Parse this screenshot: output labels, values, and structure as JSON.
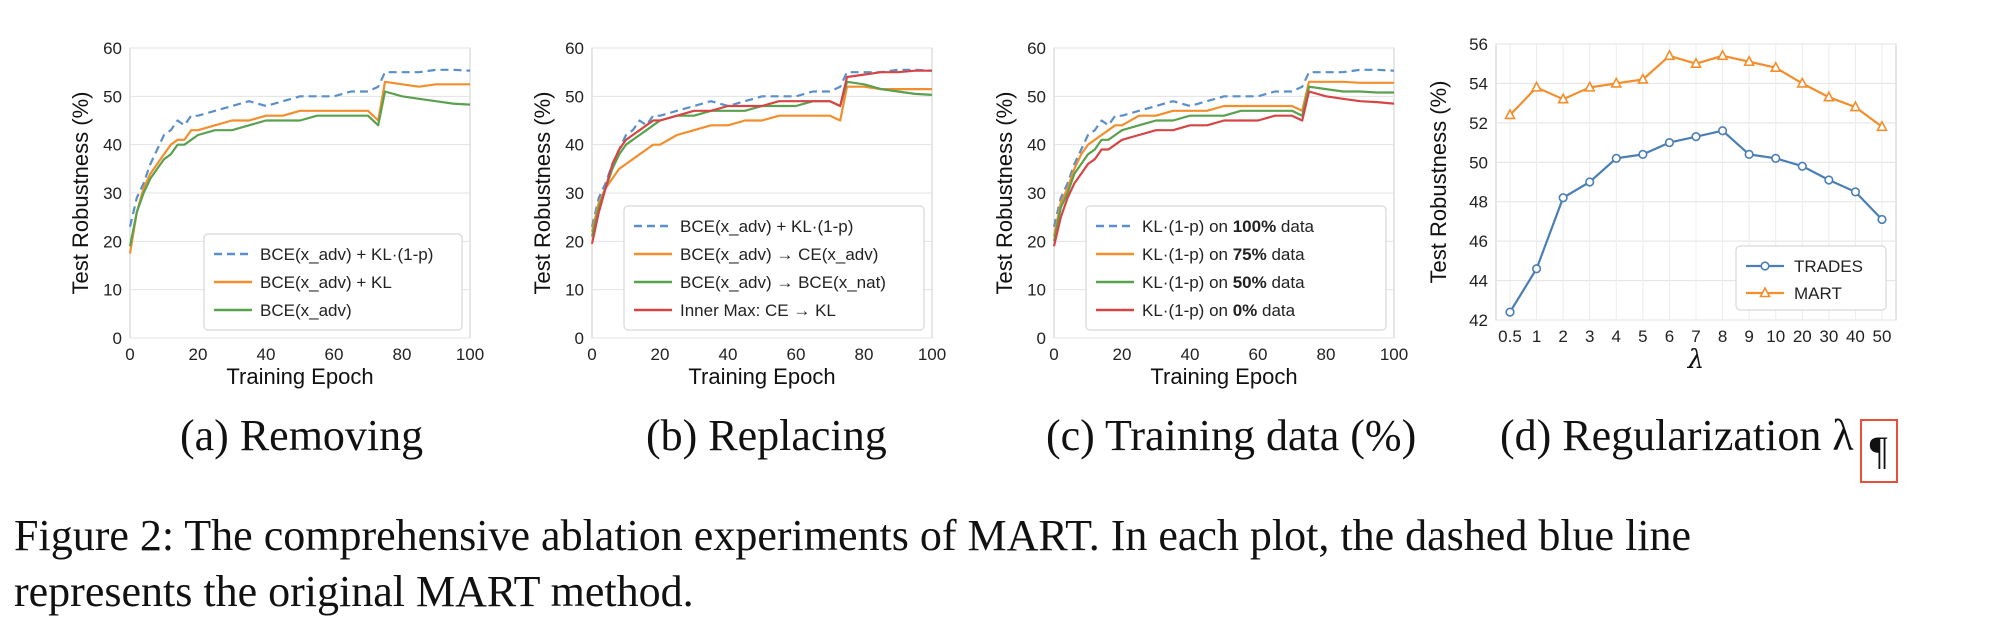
{
  "figure": {
    "caption_line1": "Figure 2: The comprehensive ablation experiments of MART. In each plot, the dashed blue line",
    "caption_line2": "represents the original MART method.",
    "pilcrow": "¶"
  },
  "chart_data": [
    {
      "type": "line",
      "subcaption": "(a) Removing",
      "xlabel": "Training Epoch",
      "ylabel": "Test Robustness (%)",
      "xlim": [
        0,
        100
      ],
      "ylim": [
        0,
        60
      ],
      "xticks": [
        "0",
        "20",
        "40",
        "60",
        "80",
        "100"
      ],
      "yticks": [
        "0",
        "10",
        "20",
        "30",
        "40",
        "50",
        "60"
      ],
      "grid": "horizontal",
      "legend_position": "lower-right",
      "series": [
        {
          "name": "BCE(x_adv) + KL·(1-p)",
          "color": "#5b8fc9",
          "dashed": true,
          "x": [
            0,
            2,
            4,
            6,
            8,
            10,
            12,
            14,
            16,
            18,
            20,
            25,
            30,
            35,
            40,
            45,
            50,
            55,
            60,
            65,
            70,
            73,
            75,
            80,
            85,
            90,
            95,
            100
          ],
          "y": [
            23,
            29,
            32,
            36,
            39,
            42,
            43,
            45,
            44,
            46,
            46,
            47,
            48,
            49,
            48,
            49,
            50,
            50,
            50,
            51,
            51,
            52,
            55,
            55,
            55,
            55.5,
            55.5,
            55.3
          ]
        },
        {
          "name": "BCE(x_adv) + KL",
          "color": "#f28e2b",
          "dashed": false,
          "x": [
            0,
            2,
            4,
            6,
            8,
            10,
            12,
            14,
            16,
            18,
            20,
            25,
            30,
            35,
            40,
            45,
            50,
            55,
            60,
            65,
            70,
            73,
            75,
            80,
            85,
            90,
            95,
            100
          ],
          "y": [
            17.5,
            26,
            31,
            34,
            36,
            38,
            40,
            41,
            41,
            43,
            43,
            44,
            45,
            45,
            46,
            46,
            47,
            47,
            47,
            47,
            47,
            45,
            53,
            52.5,
            52,
            52.5,
            52.5,
            52.5
          ]
        },
        {
          "name": "BCE(x_adv)",
          "color": "#59a14f",
          "dashed": false,
          "x": [
            0,
            2,
            4,
            6,
            8,
            10,
            12,
            14,
            16,
            18,
            20,
            25,
            30,
            35,
            40,
            45,
            50,
            55,
            60,
            65,
            70,
            73,
            75,
            80,
            85,
            90,
            95,
            100
          ],
          "y": [
            19,
            26,
            30,
            33,
            35,
            37,
            38,
            40,
            40,
            41,
            42,
            43,
            43,
            44,
            45,
            45,
            45,
            46,
            46,
            46,
            46,
            44,
            51,
            50,
            49.5,
            49,
            48.5,
            48.3
          ]
        }
      ]
    },
    {
      "type": "line",
      "subcaption": "(b) Replacing",
      "xlabel": "Training Epoch",
      "ylabel": "Test Robustness (%)",
      "xlim": [
        0,
        100
      ],
      "ylim": [
        0,
        60
      ],
      "xticks": [
        "0",
        "20",
        "40",
        "60",
        "80",
        "100"
      ],
      "yticks": [
        "0",
        "10",
        "20",
        "30",
        "40",
        "50",
        "60"
      ],
      "grid": "horizontal",
      "legend_position": "lower-right",
      "series": [
        {
          "name": "BCE(x_adv) + KL·(1-p)",
          "color": "#5b8fc9",
          "dashed": true,
          "x": [
            0,
            2,
            4,
            6,
            8,
            10,
            12,
            14,
            16,
            18,
            20,
            25,
            30,
            35,
            40,
            45,
            50,
            55,
            60,
            65,
            70,
            73,
            75,
            80,
            85,
            90,
            95,
            100
          ],
          "y": [
            23,
            29,
            32,
            36,
            39,
            42,
            43,
            45,
            44,
            46,
            46,
            47,
            48,
            49,
            48,
            49,
            50,
            50,
            50,
            51,
            51,
            52,
            55,
            55,
            55,
            55.5,
            55.5,
            55.3
          ]
        },
        {
          "name": "BCE(x_adv) → CE(x_adv)",
          "color": "#f28e2b",
          "dashed": false,
          "x": [
            0,
            2,
            4,
            6,
            8,
            10,
            12,
            14,
            16,
            18,
            20,
            25,
            30,
            35,
            40,
            45,
            50,
            55,
            60,
            65,
            70,
            73,
            75,
            80,
            85,
            90,
            95,
            100
          ],
          "y": [
            22,
            28,
            31,
            33,
            35,
            36,
            37,
            38,
            39,
            40,
            40,
            42,
            43,
            44,
            44,
            45,
            45,
            46,
            46,
            46,
            46,
            45,
            52,
            52,
            51.5,
            51.5,
            51.5,
            51.5
          ]
        },
        {
          "name": "BCE(x_adv) → BCE(x_nat)",
          "color": "#59a14f",
          "dashed": false,
          "x": [
            0,
            2,
            4,
            6,
            8,
            10,
            12,
            14,
            16,
            18,
            20,
            25,
            30,
            35,
            40,
            45,
            50,
            55,
            60,
            65,
            70,
            73,
            75,
            80,
            85,
            90,
            95,
            100
          ],
          "y": [
            21,
            27,
            31,
            35,
            38,
            40,
            41,
            42,
            43,
            44,
            45,
            46,
            46,
            47,
            47,
            47,
            48,
            48,
            48,
            49,
            49,
            48,
            53,
            52.5,
            51.5,
            51,
            50.5,
            50.3
          ]
        },
        {
          "name": "Inner Max: CE → KL",
          "color": "#d64545",
          "dashed": false,
          "x": [
            0,
            2,
            4,
            6,
            8,
            10,
            12,
            14,
            16,
            18,
            20,
            25,
            30,
            35,
            40,
            45,
            50,
            55,
            60,
            65,
            70,
            73,
            75,
            80,
            85,
            90,
            95,
            100
          ],
          "y": [
            19.5,
            26,
            31,
            36,
            39,
            41,
            42,
            43,
            44,
            45,
            45,
            46,
            47,
            47,
            48,
            48,
            48,
            49,
            49,
            49,
            49,
            48,
            54,
            54.5,
            55,
            55,
            55.3,
            55.3
          ]
        }
      ]
    },
    {
      "type": "line",
      "subcaption": "(c) Training data (%)",
      "xlabel": "Training Epoch",
      "ylabel": "Test Robustness (%)",
      "xlim": [
        0,
        100
      ],
      "ylim": [
        0,
        60
      ],
      "xticks": [
        "0",
        "20",
        "40",
        "60",
        "80",
        "100"
      ],
      "yticks": [
        "0",
        "10",
        "20",
        "30",
        "40",
        "50",
        "60"
      ],
      "grid": "horizontal",
      "legend_position": "lower-right",
      "series": [
        {
          "name": "KL·(1-p) on 100% data",
          "bold": "100%",
          "color": "#5b8fc9",
          "dashed": true,
          "x": [
            0,
            2,
            4,
            6,
            8,
            10,
            12,
            14,
            16,
            18,
            20,
            25,
            30,
            35,
            40,
            45,
            50,
            55,
            60,
            65,
            70,
            73,
            75,
            80,
            85,
            90,
            95,
            100
          ],
          "y": [
            23,
            29,
            32,
            36,
            39,
            42,
            43,
            45,
            44,
            46,
            46,
            47,
            48,
            49,
            48,
            49,
            50,
            50,
            50,
            51,
            51,
            52,
            55,
            55,
            55,
            55.5,
            55.5,
            55.3
          ]
        },
        {
          "name": "KL·(1-p) on 75% data",
          "bold": "75%",
          "color": "#f28e2b",
          "dashed": false,
          "x": [
            0,
            2,
            4,
            6,
            8,
            10,
            12,
            14,
            16,
            18,
            20,
            25,
            30,
            35,
            40,
            45,
            50,
            55,
            60,
            65,
            70,
            73,
            75,
            80,
            85,
            90,
            95,
            100
          ],
          "y": [
            21,
            28,
            31,
            35,
            38,
            40,
            41,
            42,
            43,
            44,
            44,
            46,
            46,
            47,
            47,
            47,
            48,
            48,
            48,
            48,
            48,
            47,
            53,
            53,
            53,
            52.8,
            52.8,
            52.8
          ]
        },
        {
          "name": "KL·(1-p) on 50% data",
          "bold": "50%",
          "color": "#59a14f",
          "dashed": false,
          "x": [
            0,
            2,
            4,
            6,
            8,
            10,
            12,
            14,
            16,
            18,
            20,
            25,
            30,
            35,
            40,
            45,
            50,
            55,
            60,
            65,
            70,
            73,
            75,
            80,
            85,
            90,
            95,
            100
          ],
          "y": [
            20,
            27,
            30,
            34,
            36,
            38,
            39,
            41,
            41,
            42,
            43,
            44,
            45,
            45,
            46,
            46,
            46,
            47,
            47,
            47,
            47,
            46,
            52,
            51.5,
            51,
            51,
            50.8,
            50.8
          ]
        },
        {
          "name": "KL·(1-p) on 0% data",
          "bold": "0%",
          "color": "#d64545",
          "dashed": false,
          "x": [
            0,
            2,
            4,
            6,
            8,
            10,
            12,
            14,
            16,
            18,
            20,
            25,
            30,
            35,
            40,
            45,
            50,
            55,
            60,
            65,
            70,
            73,
            75,
            80,
            85,
            90,
            95,
            100
          ],
          "y": [
            19,
            25,
            29,
            32,
            34,
            36,
            37,
            39,
            39,
            40,
            41,
            42,
            43,
            43,
            44,
            44,
            45,
            45,
            45,
            46,
            46,
            45,
            51,
            50,
            49.5,
            49,
            48.8,
            48.5
          ]
        }
      ]
    },
    {
      "type": "line",
      "subcaption": "(d) Regularization λ",
      "xlabel": "λ",
      "ylabel": "Test Robustness (%)",
      "ylim": [
        42,
        56
      ],
      "categories": [
        "0.5",
        "1",
        "2",
        "3",
        "4",
        "5",
        "6",
        "7",
        "8",
        "9",
        "10",
        "20",
        "30",
        "40",
        "50"
      ],
      "yticks": [
        "42",
        "44",
        "46",
        "48",
        "50",
        "52",
        "54",
        "56"
      ],
      "grid": "both",
      "legend_position": "lower-right",
      "series": [
        {
          "name": "TRADES",
          "color": "#4a7fb5",
          "marker": "circle",
          "values": [
            42.4,
            44.6,
            48.2,
            49.0,
            50.2,
            50.4,
            51.0,
            51.3,
            51.6,
            50.4,
            50.2,
            49.8,
            49.1,
            48.5,
            47.1
          ]
        },
        {
          "name": "MART",
          "color": "#f28e2b",
          "marker": "triangle",
          "values": [
            52.4,
            53.8,
            53.2,
            53.8,
            54.0,
            54.2,
            55.4,
            55.0,
            55.4,
            55.1,
            54.8,
            54.0,
            53.3,
            52.8,
            51.8
          ]
        }
      ]
    }
  ]
}
